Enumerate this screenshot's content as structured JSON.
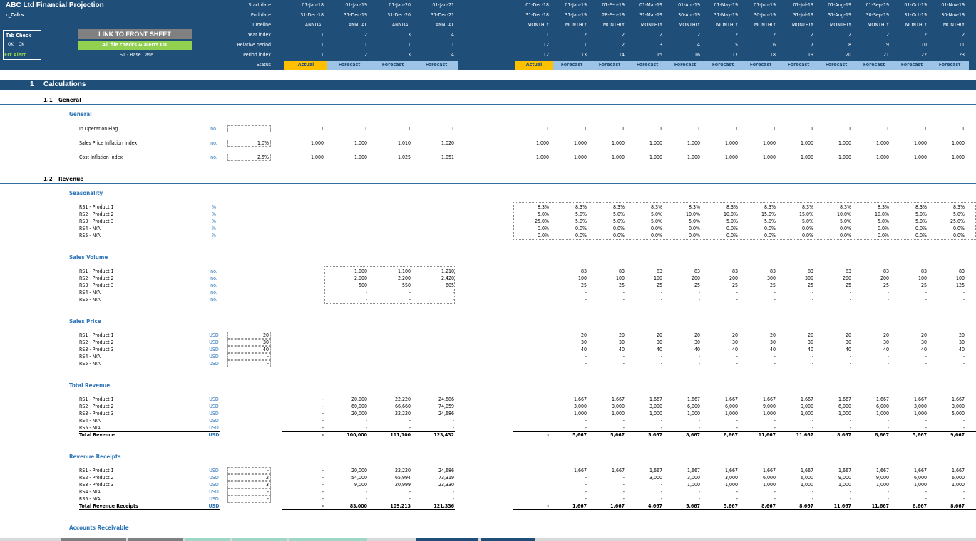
{
  "title": "ABC Ltd Financial Projection",
  "sheet": "c_Calcs",
  "tab_check": {
    "label": "Tab Check",
    "ok1": "OK",
    "ok2": "OK",
    "err": "Err Alert"
  },
  "link_button": "LINK TO FRONT SHEET",
  "checks_ok": "All file checks & alerts OK",
  "scenario": "S1 - Base Case",
  "timeline_labels": [
    "Start date",
    "End date",
    "Timeline",
    "Year index",
    "Relative period",
    "Period index",
    "Status"
  ],
  "annual": {
    "start": [
      "01-Jan-18",
      "01-Jan-19",
      "01-Jan-20",
      "01-Jan-21"
    ],
    "end": [
      "31-Dec-18",
      "31-Dec-19",
      "31-Dec-20",
      "31-Dec-21"
    ],
    "timeline": [
      "ANNUAL",
      "ANNUAL",
      "ANNUAL",
      "ANNUAL"
    ],
    "year_index": [
      "1",
      "2",
      "3",
      "4"
    ],
    "relative": [
      "1",
      "1",
      "1",
      "1"
    ],
    "period": [
      "1",
      "2",
      "3",
      "4"
    ],
    "status": [
      "Actual",
      "Forecast",
      "Forecast",
      "Forecast"
    ]
  },
  "monthly": {
    "start": [
      "01-Dec-18",
      "01-Jan-19",
      "01-Feb-19",
      "01-Mar-19",
      "01-Apr-19",
      "01-May-19",
      "01-Jun-19",
      "01-Jul-19",
      "01-Aug-19",
      "01-Sep-19",
      "01-Oct-19",
      "01-Nov-19"
    ],
    "end": [
      "31-Dec-18",
      "31-Jan-19",
      "28-Feb-19",
      "31-Mar-19",
      "30-Apr-19",
      "31-May-19",
      "30-Jun-19",
      "31-Jul-19",
      "31-Aug-19",
      "30-Sep-19",
      "31-Oct-19",
      "30-Nov-19"
    ],
    "timeline": [
      "MONTHLY",
      "MONTHLY",
      "MONTHLY",
      "MONTHLY",
      "MONTHLY",
      "MONTHLY",
      "MONTHLY",
      "MONTHLY",
      "MONTHLY",
      "MONTHLY",
      "MONTHLY",
      "MONTHLY"
    ],
    "year_index": [
      "1",
      "2",
      "2",
      "2",
      "2",
      "2",
      "2",
      "2",
      "2",
      "2",
      "2",
      "2"
    ],
    "relative": [
      "12",
      "1",
      "2",
      "3",
      "4",
      "5",
      "6",
      "7",
      "8",
      "9",
      "10",
      "11"
    ],
    "period": [
      "12",
      "13",
      "14",
      "15",
      "16",
      "17",
      "18",
      "19",
      "20",
      "21",
      "22",
      "23"
    ],
    "status": [
      "Actual",
      "Forecast",
      "Forecast",
      "Forecast",
      "Forecast",
      "Forecast",
      "Forecast",
      "Forecast",
      "Forecast",
      "Forecast",
      "Forecast",
      "Forecast"
    ]
  },
  "section": {
    "num": "1",
    "title": "Calculations"
  },
  "subsections": [
    {
      "num": "1.1",
      "title": "General"
    },
    {
      "num": "1.2",
      "title": "Revenue"
    }
  ],
  "blocks": [
    {
      "title": "General",
      "top": 156,
      "rows": [
        {
          "label": "In Operation Flag",
          "unit": "no.",
          "input": "",
          "annual": [
            "1",
            "1",
            "1",
            "1"
          ],
          "monthly": [
            "1",
            "1",
            "1",
            "1",
            "1",
            "1",
            "1",
            "1",
            "1",
            "1",
            "1",
            "1"
          ]
        },
        {
          "label": "Sales Price Inflation Index",
          "unit": "no.",
          "input": "1.0%",
          "annual": [
            "1.000",
            "1.000",
            "1.010",
            "1.020"
          ],
          "monthly": [
            "1.000",
            "1.000",
            "1.000",
            "1.000",
            "1.000",
            "1.000",
            "1.000",
            "1.000",
            "1.000",
            "1.000",
            "1.000",
            "1.000"
          ]
        },
        {
          "label": "Cost Inflation Index",
          "unit": "no.",
          "input": "2.5%",
          "annual": [
            "1.000",
            "1.000",
            "1.025",
            "1.051"
          ],
          "monthly": [
            "1.000",
            "1.000",
            "1.000",
            "1.000",
            "1.000",
            "1.000",
            "1.000",
            "1.000",
            "1.000",
            "1.000",
            "1.000",
            "1.000"
          ]
        }
      ]
    },
    {
      "title": "Seasonality",
      "rows": [
        {
          "label": "RS1 - Product 1",
          "unit": "%",
          "monthly": [
            "8.3%",
            "8.3%",
            "8.3%",
            "8.3%",
            "8.3%",
            "8.3%",
            "8.3%",
            "8.3%",
            "8.3%",
            "8.3%",
            "8.3%",
            "8.3%"
          ]
        },
        {
          "label": "RS2 - Product 2",
          "unit": "%",
          "monthly": [
            "5.0%",
            "5.0%",
            "5.0%",
            "5.0%",
            "10.0%",
            "10.0%",
            "15.0%",
            "15.0%",
            "10.0%",
            "10.0%",
            "5.0%",
            "5.0%"
          ]
        },
        {
          "label": "RS3 - Product 3",
          "unit": "%",
          "monthly": [
            "25.0%",
            "5.0%",
            "5.0%",
            "5.0%",
            "5.0%",
            "5.0%",
            "5.0%",
            "5.0%",
            "5.0%",
            "5.0%",
            "5.0%",
            "25.0%"
          ]
        },
        {
          "label": "RS4 - N/A",
          "unit": "%",
          "monthly": [
            "0.0%",
            "0.0%",
            "0.0%",
            "0.0%",
            "0.0%",
            "0.0%",
            "0.0%",
            "0.0%",
            "0.0%",
            "0.0%",
            "0.0%",
            "0.0%"
          ]
        },
        {
          "label": "RS5 - N/A",
          "unit": "%",
          "monthly": [
            "0.0%",
            "0.0%",
            "0.0%",
            "0.0%",
            "0.0%",
            "0.0%",
            "0.0%",
            "0.0%",
            "0.0%",
            "0.0%",
            "0.0%",
            "0.0%"
          ]
        }
      ]
    },
    {
      "title": "Sales Volume",
      "rows": [
        {
          "label": "RS1 - Product 1",
          "unit": "no.",
          "annual": [
            "",
            "1,000",
            "1,100",
            "1,210"
          ],
          "monthly": [
            "",
            "83",
            "83",
            "83",
            "83",
            "83",
            "83",
            "83",
            "83",
            "83",
            "83",
            "83"
          ]
        },
        {
          "label": "RS2 - Product 2",
          "unit": "no.",
          "annual": [
            "",
            "2,000",
            "2,200",
            "2,420"
          ],
          "monthly": [
            "",
            "100",
            "100",
            "100",
            "200",
            "200",
            "300",
            "300",
            "200",
            "200",
            "100",
            "100"
          ]
        },
        {
          "label": "RS3 - Product 3",
          "unit": "no.",
          "annual": [
            "",
            "500",
            "550",
            "605"
          ],
          "monthly": [
            "",
            "25",
            "25",
            "25",
            "25",
            "25",
            "25",
            "25",
            "25",
            "25",
            "25",
            "125"
          ]
        },
        {
          "label": "RS4 - N/A",
          "unit": "no.",
          "annual": [
            "",
            "-",
            "-",
            "-"
          ],
          "monthly": [
            "",
            "-",
            "-",
            "-",
            "-",
            "-",
            "-",
            "-",
            "-",
            "-",
            "-",
            "-"
          ]
        },
        {
          "label": "RS5 - N/A",
          "unit": "no.",
          "annual": [
            "",
            "-",
            "-",
            "-"
          ],
          "monthly": [
            "",
            "-",
            "-",
            "-",
            "-",
            "-",
            "-",
            "-",
            "-",
            "-",
            "-",
            "-"
          ]
        }
      ]
    },
    {
      "title": "Sales Price",
      "rows": [
        {
          "label": "RS1 - Product 1",
          "unit": "USD",
          "input": "20",
          "monthly": [
            "",
            "20",
            "20",
            "20",
            "20",
            "20",
            "20",
            "20",
            "20",
            "20",
            "20",
            "20"
          ]
        },
        {
          "label": "RS2 - Product 2",
          "unit": "USD",
          "input": "30",
          "monthly": [
            "",
            "30",
            "30",
            "30",
            "30",
            "30",
            "30",
            "30",
            "30",
            "30",
            "30",
            "30"
          ]
        },
        {
          "label": "RS3 - Product 3",
          "unit": "USD",
          "input": "40",
          "monthly": [
            "",
            "40",
            "40",
            "40",
            "40",
            "40",
            "40",
            "40",
            "40",
            "40",
            "40",
            "40"
          ]
        },
        {
          "label": "RS4 - N/A",
          "unit": "USD",
          "input": "-",
          "monthly": [
            "",
            "-",
            "-",
            "-",
            "-",
            "-",
            "-",
            "-",
            "-",
            "-",
            "-",
            "-"
          ]
        },
        {
          "label": "RS5 - N/A",
          "unit": "USD",
          "input": "-",
          "monthly": [
            "",
            "-",
            "-",
            "-",
            "-",
            "-",
            "-",
            "-",
            "-",
            "-",
            "-",
            "-"
          ]
        }
      ]
    },
    {
      "title": "Total Revenue",
      "total": "Total Revenue",
      "rows": [
        {
          "label": "RS1 - Product 1",
          "unit": "USD",
          "annual": [
            "-",
            "20,000",
            "22,220",
            "24,686"
          ],
          "monthly": [
            "",
            "1,667",
            "1,667",
            "1,667",
            "1,667",
            "1,667",
            "1,667",
            "1,667",
            "1,667",
            "1,667",
            "1,667",
            "1,667"
          ]
        },
        {
          "label": "RS2 - Product 2",
          "unit": "USD",
          "annual": [
            "-",
            "60,000",
            "66,660",
            "74,059"
          ],
          "monthly": [
            "",
            "3,000",
            "3,000",
            "3,000",
            "6,000",
            "6,000",
            "9,000",
            "9,000",
            "6,000",
            "6,000",
            "3,000",
            "3,000"
          ]
        },
        {
          "label": "RS3 - Product 3",
          "unit": "USD",
          "annual": [
            "-",
            "20,000",
            "22,220",
            "24,686"
          ],
          "monthly": [
            "",
            "1,000",
            "1,000",
            "1,000",
            "1,000",
            "1,000",
            "1,000",
            "1,000",
            "1,000",
            "1,000",
            "1,000",
            "5,000"
          ]
        },
        {
          "label": "RS4 - N/A",
          "unit": "USD",
          "annual": [
            "-",
            "-",
            "-",
            "-"
          ],
          "monthly": [
            "",
            "-",
            "-",
            "-",
            "-",
            "-",
            "-",
            "-",
            "-",
            "-",
            "-",
            "-"
          ]
        },
        {
          "label": "RS5 - N/A",
          "unit": "USD",
          "annual": [
            "-",
            "-",
            "-",
            "-"
          ],
          "monthly": [
            "",
            "-",
            "-",
            "-",
            "-",
            "-",
            "-",
            "-",
            "-",
            "-",
            "-",
            "-"
          ]
        },
        {
          "label": "Total Revenue",
          "unit": "USD",
          "is_total": true,
          "annual": [
            "-",
            "100,000",
            "111,100",
            "123,432"
          ],
          "monthly": [
            "-",
            "5,667",
            "5,667",
            "5,667",
            "8,667",
            "8,667",
            "11,667",
            "11,667",
            "8,667",
            "8,667",
            "5,667",
            "9,667"
          ]
        }
      ]
    },
    {
      "title": "Revenue Receipts",
      "rows": [
        {
          "label": "RS1 - Product 1",
          "unit": "USD",
          "input": "-",
          "annual": [
            "-",
            "20,000",
            "22,220",
            "24,686"
          ],
          "monthly": [
            "",
            "1,667",
            "1,667",
            "1,667",
            "1,667",
            "1,667",
            "1,667",
            "1,667",
            "1,667",
            "1,667",
            "1,667",
            "1,667"
          ]
        },
        {
          "label": "RS2 - Product 2",
          "unit": "USD",
          "input": "2",
          "annual": [
            "-",
            "54,000",
            "65,994",
            "73,319"
          ],
          "monthly": [
            "",
            "-",
            "-",
            "3,000",
            "3,000",
            "3,000",
            "6,000",
            "6,000",
            "9,000",
            "9,000",
            "6,000",
            "6,000"
          ]
        },
        {
          "label": "RS3 - Product 3",
          "unit": "USD",
          "input": "3",
          "annual": [
            "-",
            "9,000",
            "20,999",
            "23,330"
          ],
          "monthly": [
            "",
            "-",
            "-",
            "-",
            "1,000",
            "1,000",
            "1,000",
            "1,000",
            "1,000",
            "1,000",
            "1,000",
            "1,000"
          ]
        },
        {
          "label": "RS4 - N/A",
          "unit": "USD",
          "input": "-",
          "annual": [
            "-",
            "-",
            "-",
            "-"
          ],
          "monthly": [
            "",
            "-",
            "-",
            "-",
            "-",
            "-",
            "-",
            "-",
            "-",
            "-",
            "-",
            "-"
          ]
        },
        {
          "label": "RS5 - N/A",
          "unit": "USD",
          "input": "-",
          "annual": [
            "-",
            "-",
            "-",
            "-"
          ],
          "monthly": [
            "",
            "-",
            "-",
            "-",
            "-",
            "-",
            "-",
            "-",
            "-",
            "-",
            "-",
            "-"
          ]
        },
        {
          "label": "Total Revenue Receipts",
          "unit": "USD",
          "is_total": true,
          "annual": [
            "-",
            "83,000",
            "109,213",
            "121,336"
          ],
          "monthly": [
            "-",
            "1,667",
            "1,667",
            "4,667",
            "5,667",
            "5,667",
            "8,667",
            "8,667",
            "11,667",
            "11,667",
            "8,667",
            "8,667"
          ]
        }
      ]
    },
    {
      "title": "Accounts Receivable",
      "rows": []
    }
  ],
  "colors": {
    "header": "#1f4e79",
    "actual": "#ffc000",
    "forecast": "#9dc3e6",
    "accent": "#2e75b6",
    "ok": "#92d050"
  }
}
